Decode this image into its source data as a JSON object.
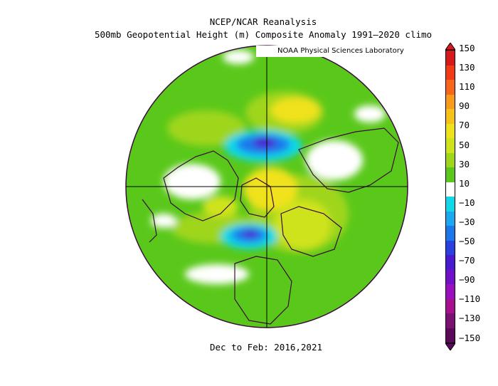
{
  "title_line1": "NCEP/NCAR Reanalysis",
  "title_line2": "500mb Geopotential Height (m) Composite Anomaly 1991–2020 climo",
  "credit": "NOAA Physical Sciences Laboratory",
  "caption": "Dec to Feb: 2016,2021",
  "colorbar": {
    "labels": [
      "150",
      "130",
      "110",
      "90",
      "70",
      "50",
      "30",
      "10",
      "−10",
      "−30",
      "−50",
      "−70",
      "−90",
      "−110",
      "−130",
      "−150"
    ],
    "colors": [
      "#d7191c",
      "#f23a16",
      "#f8661c",
      "#f99a1a",
      "#f6c21a",
      "#f0e21a",
      "#cfe31a",
      "#9fd61a",
      "#5ac81a",
      "#ffffff",
      "#10d8e8",
      "#1aa8f0",
      "#1a78ec",
      "#2a40e0",
      "#4a1ad0",
      "#7010c8",
      "#9a10c0",
      "#a81090",
      "#7a1070",
      "#5a0a58"
    ]
  },
  "legend_colors": {
    "green": "#5ac81a",
    "light_green": "#9fd61a",
    "yellow": "#f0e21a",
    "cyan": "#10d8e8",
    "blue": "#1a78ec",
    "purple": "#4a1ad0",
    "coast": "#3a0a3a"
  }
}
